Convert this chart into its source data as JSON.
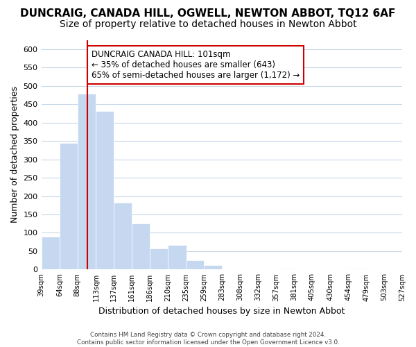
{
  "title": "DUNCRAIG, CANADA HILL, OGWELL, NEWTON ABBOT, TQ12 6AF",
  "subtitle": "Size of property relative to detached houses in Newton Abbot",
  "xlabel": "Distribution of detached houses by size in Newton Abbot",
  "ylabel": "Number of detached properties",
  "bar_edges": [
    39,
    64,
    88,
    113,
    137,
    161,
    186,
    210,
    235,
    259,
    283,
    308,
    332,
    357,
    381,
    405,
    430,
    454,
    479,
    503,
    527
  ],
  "bar_heights": [
    90,
    345,
    478,
    432,
    183,
    125,
    57,
    67,
    25,
    13,
    0,
    0,
    0,
    3,
    0,
    0,
    0,
    3,
    0,
    0
  ],
  "bar_color": "#c5d8f0",
  "bar_edge_color": "#ffffff",
  "vline_x": 101,
  "vline_color": "#cc0000",
  "annotation_text": "DUNCRAIG CANADA HILL: 101sqm\n← 35% of detached houses are smaller (643)\n65% of semi-detached houses are larger (1,172) →",
  "annotation_box_color": "#ffffff",
  "annotation_box_edge_color": "#cc0000",
  "ylim": [
    0,
    625
  ],
  "yticks": [
    0,
    50,
    100,
    150,
    200,
    250,
    300,
    350,
    400,
    450,
    500,
    550,
    600
  ],
  "tick_labels": [
    "39sqm",
    "64sqm",
    "88sqm",
    "113sqm",
    "137sqm",
    "161sqm",
    "186sqm",
    "210sqm",
    "235sqm",
    "259sqm",
    "283sqm",
    "308sqm",
    "332sqm",
    "357sqm",
    "381sqm",
    "405sqm",
    "430sqm",
    "454sqm",
    "479sqm",
    "503sqm",
    "527sqm"
  ],
  "background_color": "#ffffff",
  "grid_color": "#c8d8e8",
  "footer_text": "Contains HM Land Registry data © Crown copyright and database right 2024.\nContains public sector information licensed under the Open Government Licence v3.0.",
  "title_fontsize": 11,
  "subtitle_fontsize": 10,
  "axis_label_fontsize": 9,
  "tick_fontsize": 7.2,
  "annotation_fontsize": 8.5
}
